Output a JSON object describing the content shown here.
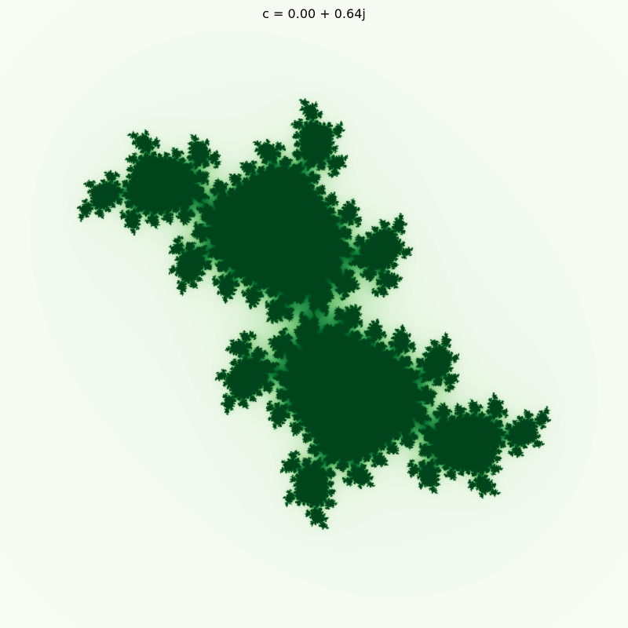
{
  "title": "c = 0.00 + 0.64j",
  "julia": {
    "c_real": 0.0,
    "c_imag": 0.64,
    "max_iterations": 60,
    "real_range": [
      -1.6,
      1.6
    ],
    "imag_range": [
      -1.6,
      1.6
    ]
  },
  "colormap": {
    "name": "Greens",
    "stops": [
      "#f7fcf5",
      "#e5f5e0",
      "#c7e9c0",
      "#a1d99b",
      "#74c476",
      "#41ab5d",
      "#238b45",
      "#006d2c",
      "#00441b"
    ]
  },
  "background_color": "#f7fcf5"
}
